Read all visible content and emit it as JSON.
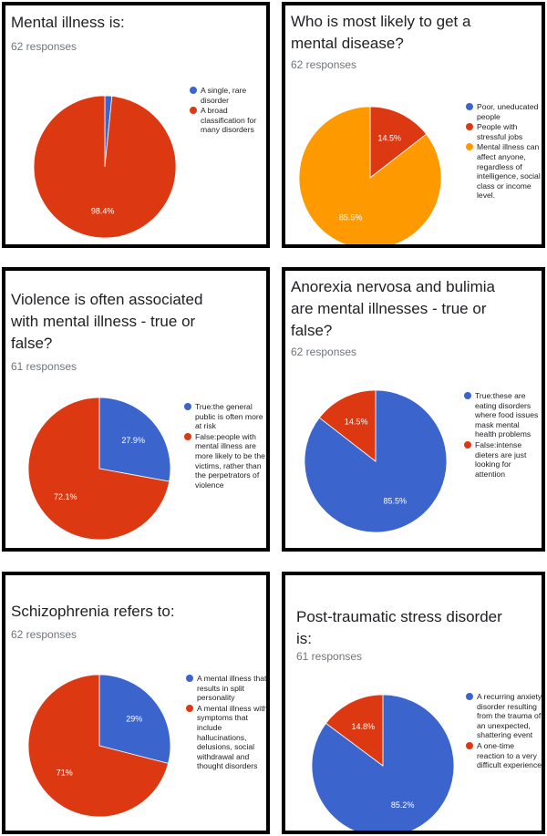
{
  "colors": {
    "blue": "#3b65cc",
    "red": "#dc3912",
    "orange": "#ff9900"
  },
  "chart_data": [
    {
      "type": "pie",
      "title": "Mental illness is:",
      "responses": "62 responses",
      "series": [
        {
          "label": "A single, rare disorder",
          "value": 1.6,
          "display": "",
          "color": "#3b65cc"
        },
        {
          "label": "A broad classification for many disorders",
          "value": 98.4,
          "display": "98.4%",
          "color": "#dc3912"
        }
      ]
    },
    {
      "type": "pie",
      "title": "Who is most likely to get a mental disease?",
      "responses": "62 responses",
      "series": [
        {
          "label": "Poor, uneducated people",
          "value": 0,
          "display": "",
          "color": "#3b65cc"
        },
        {
          "label": "People with stressful jobs",
          "value": 14.5,
          "display": "14.5%",
          "color": "#dc3912"
        },
        {
          "label": "Mental illness can affect anyone, regardless of intelligence, social class or income level.",
          "value": 85.5,
          "display": "85.5%",
          "color": "#ff9900"
        }
      ]
    },
    {
      "type": "pie",
      "title": "Violence is often associated with mental illness - true or false?",
      "responses": "61 responses",
      "series": [
        {
          "label": "True:the general public is often more at risk",
          "value": 27.9,
          "display": "27.9%",
          "color": "#3b65cc"
        },
        {
          "label": "False:people with mental illness are more likely to be the victims, rather than the perpetrators of violence",
          "value": 72.1,
          "display": "72.1%",
          "color": "#dc3912"
        }
      ]
    },
    {
      "type": "pie",
      "title": "Anorexia nervosa and bulimia are mental illnesses - true or false?",
      "responses": "62 responses",
      "series": [
        {
          "label": "True:these are eating disorders where food issues mask mental health problems",
          "value": 85.5,
          "display": "85.5%",
          "color": "#3b65cc"
        },
        {
          "label": "False:intense dieters are just looking for attention",
          "value": 14.5,
          "display": "14.5%",
          "color": "#dc3912"
        }
      ]
    },
    {
      "type": "pie",
      "title": "Schizophrenia refers to:",
      "responses": "62 responses",
      "series": [
        {
          "label": "A mental illness that results in split personality",
          "value": 29,
          "display": "29%",
          "color": "#3b65cc"
        },
        {
          "label": "A mental illness with symptoms that include hallucinations, delusions, social withdrawal and thought disorders",
          "value": 71,
          "display": "71%",
          "color": "#dc3912"
        }
      ]
    },
    {
      "type": "pie",
      "title": "Post-traumatic stress disorder is:",
      "responses": "61 responses",
      "series": [
        {
          "label": "A recurring anxiety disorder resulting from the trauma of an unexpected, shattering event",
          "value": 85.2,
          "display": "85.2%",
          "color": "#3b65cc"
        },
        {
          "label": "A one-time reaction to a very difficult experience",
          "value": 14.8,
          "display": "14.8%",
          "color": "#dc3912"
        }
      ]
    }
  ]
}
